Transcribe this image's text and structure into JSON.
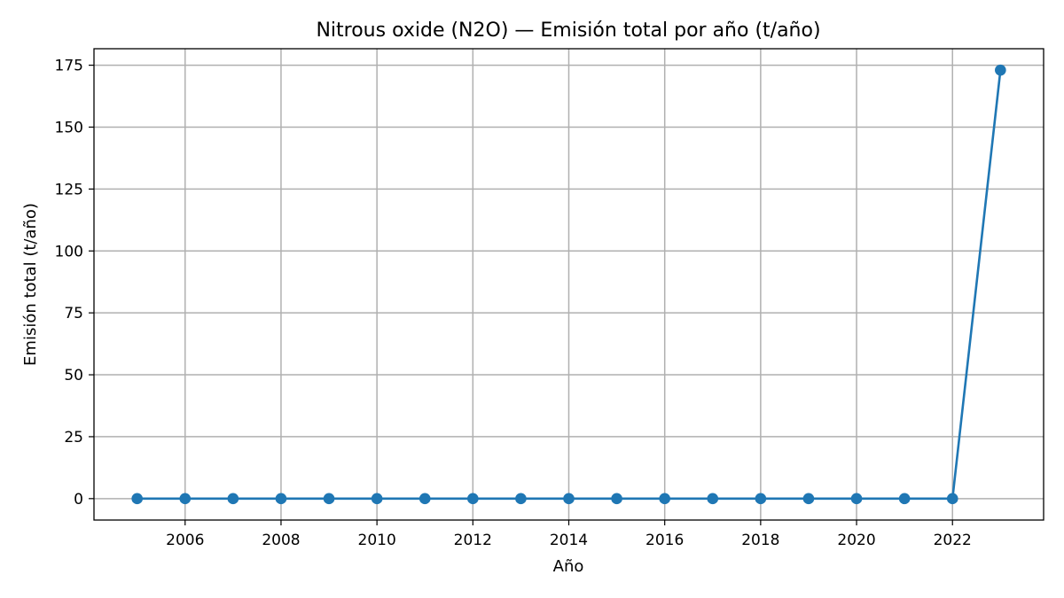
{
  "chart_data": {
    "type": "line",
    "title": "Nitrous oxide (N2O) — Emisión total por año (t/año)",
    "xlabel": "Año",
    "ylabel": "Emisión total (t/año)",
    "x": [
      2005,
      2006,
      2007,
      2008,
      2009,
      2010,
      2011,
      2012,
      2013,
      2014,
      2015,
      2016,
      2017,
      2018,
      2019,
      2020,
      2021,
      2022,
      2023
    ],
    "series": [
      {
        "values": [
          0,
          0,
          0,
          0,
          0,
          0,
          0,
          0,
          0,
          0,
          0,
          0,
          0,
          0,
          0,
          0,
          0,
          0,
          173
        ],
        "color": "#1f77b4",
        "marker": "circle"
      }
    ],
    "xticks": [
      "2006",
      "2008",
      "2010",
      "2012",
      "2014",
      "2016",
      "2018",
      "2020",
      "2022"
    ],
    "yticks": [
      "0",
      "25",
      "50",
      "75",
      "100",
      "125",
      "150",
      "175"
    ],
    "xlim": [
      2004.1,
      2023.9
    ],
    "ylim": [
      -8.65,
      181.65
    ],
    "grid": true,
    "legend": "none"
  }
}
